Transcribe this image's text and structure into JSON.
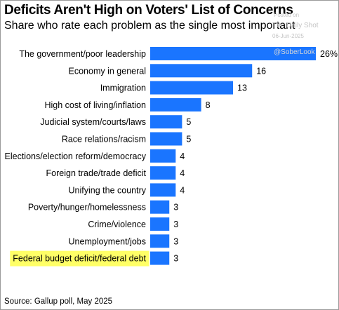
{
  "title": "Deficits Aren't High on Voters' List of Concerns",
  "subtitle": "Share who rate each problem as the single most important",
  "watermark": {
    "line1": "Posted on",
    "line2": "The Daily Shot",
    "line3": "06-Jun-2025",
    "line4": "@SoberLook"
  },
  "source": "Source: Gallup poll, May 2025",
  "colors": {
    "bar": "#1a75ff",
    "highlight": "#ffff66",
    "text": "#000000"
  },
  "chart_data": {
    "type": "bar",
    "orientation": "horizontal",
    "categories": [
      "The government/poor leadership",
      "Economy in general",
      "Immigration",
      "High cost of living/inflation",
      "Judicial system/courts/laws",
      "Race relations/racism",
      "Elections/election reform/democracy",
      "Foreign trade/trade deficit",
      "Unifying the country",
      "Poverty/hunger/homelessness",
      "Crime/violence",
      "Unemployment/jobs",
      "Federal budget deficit/federal debt"
    ],
    "values": [
      26,
      16,
      13,
      8,
      5,
      5,
      4,
      4,
      4,
      3,
      3,
      3,
      3
    ],
    "value_labels": [
      "26%",
      "16",
      "13",
      "8",
      "5",
      "5",
      "4",
      "4",
      "4",
      "3",
      "3",
      "3",
      "3"
    ],
    "highlighted_category": "Federal budget deficit/federal debt",
    "xlim": [
      0,
      26
    ],
    "grid": false,
    "legend": "none"
  }
}
